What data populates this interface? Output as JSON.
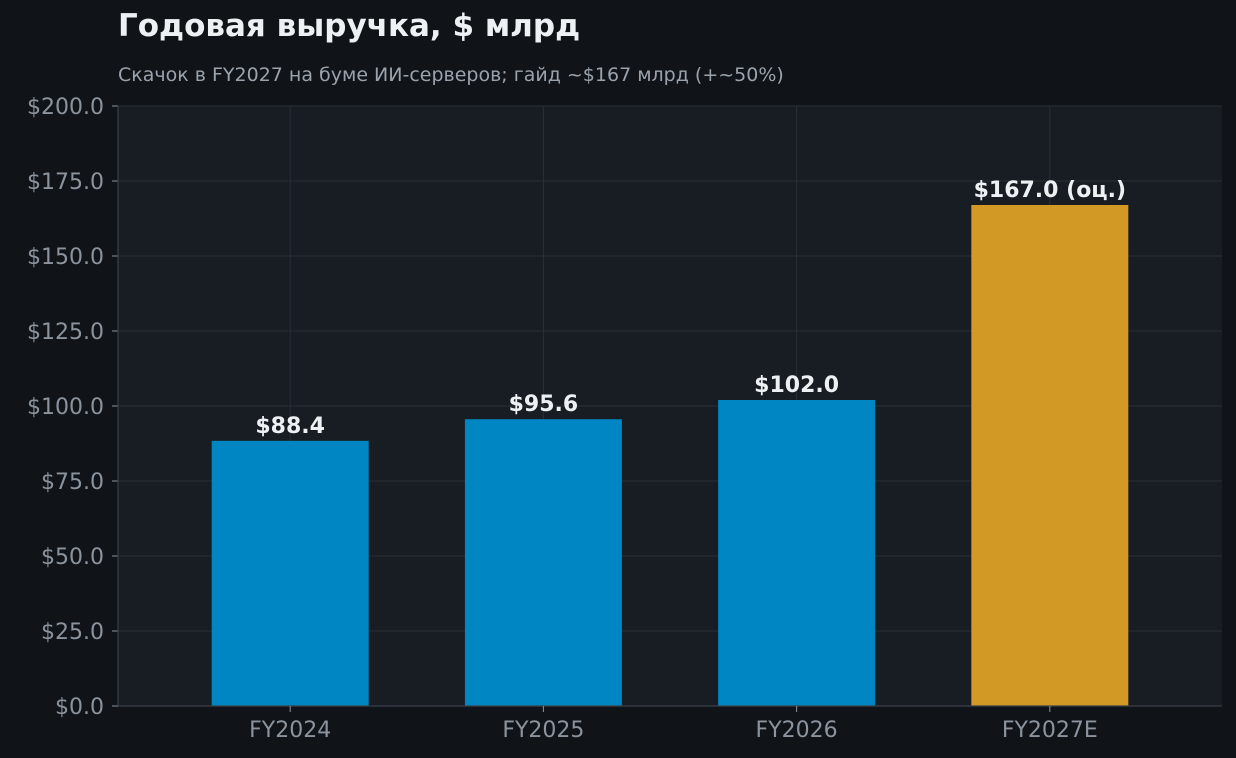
{
  "chart_data": {
    "type": "bar",
    "title": "Годовая выручка, $ млрд",
    "subtitle": "Скачок в FY2027 на буме ИИ-серверов; гайд ~$167 млрд (+~50%)",
    "categories": [
      "FY2024",
      "FY2025",
      "FY2026",
      "FY2027E"
    ],
    "values": [
      88.4,
      95.6,
      102.0,
      167.0
    ],
    "data_labels": [
      "$88.4",
      "$95.6",
      "$102.0",
      "$167.0 (оц.)"
    ],
    "ylim": [
      0,
      200
    ],
    "yticks": [
      0,
      25,
      50,
      75,
      100,
      125,
      150,
      175,
      200
    ],
    "ytick_labels": [
      "$0.0",
      "$25.0",
      "$50.0",
      "$75.0",
      "$100.0",
      "$125.0",
      "$150.0",
      "$175.0",
      "$200.0"
    ],
    "xlabel": "",
    "ylabel": "",
    "grid": true,
    "colors": {
      "actual": "#0086c2",
      "estimate": "#d29a24",
      "plot_background": "#181c23",
      "page_background": "#101418",
      "grid": "#2a2f37"
    },
    "estimate_category": "FY2027E"
  }
}
